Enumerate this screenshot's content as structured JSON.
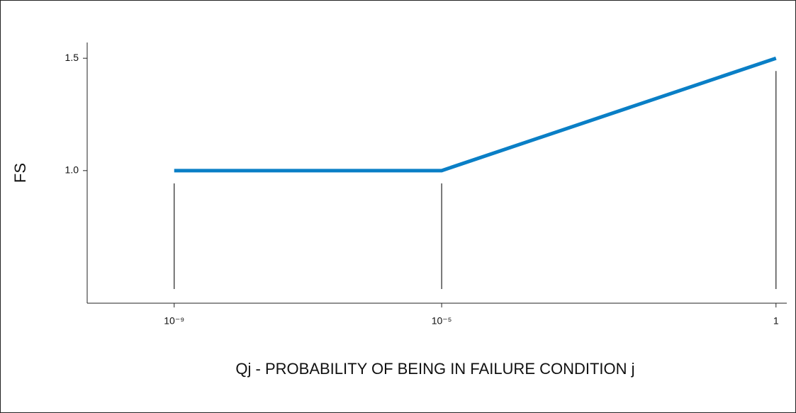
{
  "chart_data": {
    "type": "line",
    "x_scale": "log",
    "x": [
      1e-09,
      1e-05,
      1
    ],
    "values": [
      1.0,
      1.0,
      1.5
    ],
    "color": "#0a7fc6",
    "xlabel": "Qj - PROBABILITY OF BEING IN FAILURE CONDITION j",
    "ylabel": "FS",
    "xlim": [
      5e-11,
      1.45
    ],
    "ylim": [
      0.41,
      1.57
    ],
    "xticks": [
      {
        "value": 1e-09,
        "label": "10⁻⁹"
      },
      {
        "value": 1e-05,
        "label": "10⁻⁵"
      },
      1
    ],
    "yticks": [
      {
        "value": 1,
        "label": "1.0"
      },
      1.5
    ]
  }
}
